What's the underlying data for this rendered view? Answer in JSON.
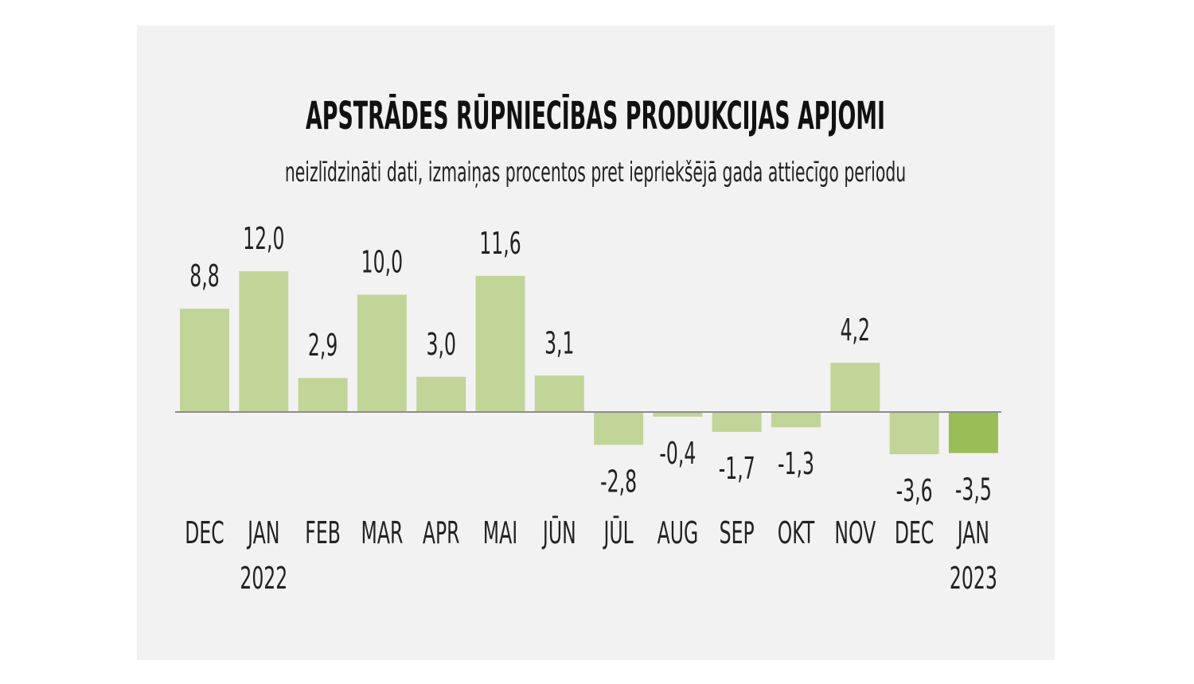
{
  "chart_data": {
    "type": "bar",
    "title": "APSTRĀDES RŪPNIECĪBAS PRODUKCIJAS APJOMI",
    "subtitle": "neizlīdzināti dati, izmaiņas procentos pret iepriekšējā gada attiecīgo periodu",
    "categories": [
      "DEC",
      "JAN",
      "FEB",
      "MAR",
      "APR",
      "MAI",
      "JŪN",
      "JŪL",
      "AUG",
      "SEP",
      "OKT",
      "NOV",
      "DEC",
      "JAN"
    ],
    "year_labels": {
      "1": "2022",
      "13": "2023"
    },
    "values": [
      8.8,
      12.0,
      2.9,
      10.0,
      3.0,
      11.6,
      3.1,
      -2.8,
      -0.4,
      -1.7,
      -1.3,
      4.2,
      -3.6,
      -3.5
    ],
    "value_labels": [
      "8,8",
      "12,0",
      "2,9",
      "10,0",
      "3,0",
      "11,6",
      "3,1",
      "-2,8",
      "-0,4",
      "-1,7",
      "-1,3",
      "4,2",
      "-3,6",
      "-3,5"
    ],
    "highlight_index": 13,
    "xlabel": "",
    "ylabel": "",
    "grid": false,
    "colors": {
      "bar": "#c1d598",
      "highlight": "#9bbd58",
      "axis": "#8c8c8c",
      "background": "#f2f2f2",
      "text": "#222222"
    }
  }
}
